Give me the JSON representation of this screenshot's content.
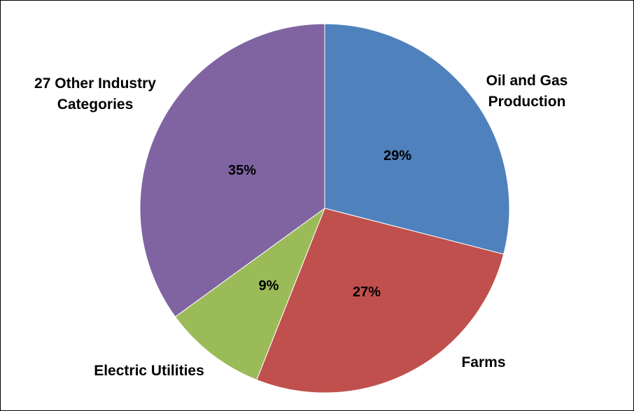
{
  "chart_data": {
    "type": "pie",
    "title": "",
    "categories": [
      "Oil and Gas Production",
      "Farms",
      "Electric Utilities",
      "27 Other Industry Categories"
    ],
    "values": [
      29,
      27,
      9,
      35
    ],
    "value_labels": [
      "29%",
      "27%",
      "9%",
      "35%"
    ],
    "colors": [
      "#4F81BD",
      "#C0504D",
      "#9BBB59",
      "#8064A2"
    ],
    "legend": "none",
    "start": "12 o'clock",
    "direction": "clockwise"
  },
  "category_label_lines": [
    [
      "Oil and Gas",
      "Production"
    ],
    [
      "Farms"
    ],
    [
      "Electric Utilities"
    ],
    [
      "27 Other Industry",
      "Categories"
    ]
  ]
}
